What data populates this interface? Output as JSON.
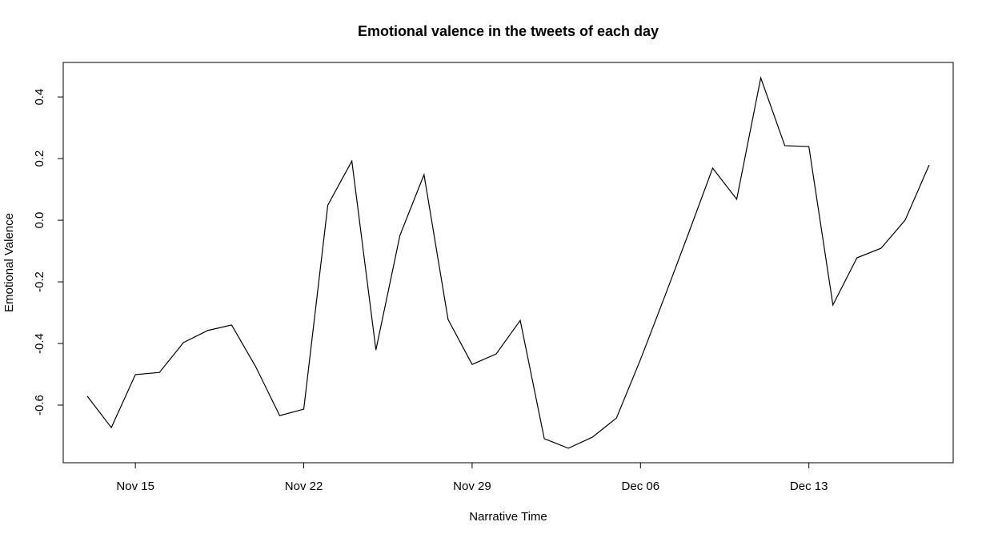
{
  "chart_data": {
    "type": "line",
    "title": "Emotional valence in the tweets of each day",
    "xlabel": "Narrative Time",
    "ylabel": "Emotional Valence",
    "x": [
      "11-13",
      "11-14",
      "11-15",
      "11-16",
      "11-17",
      "11-18",
      "11-19",
      "11-20",
      "11-21",
      "11-22",
      "11-23",
      "11-24",
      "11-25",
      "11-26",
      "11-27",
      "11-28",
      "11-29",
      "11-30",
      "12-01",
      "12-02",
      "12-03",
      "12-04",
      "12-05",
      "12-06",
      "12-07",
      "12-08",
      "12-09",
      "12-10",
      "12-11",
      "12-12",
      "12-13",
      "12-14",
      "12-15",
      "12-16",
      "12-17",
      "12-18"
    ],
    "series": [
      {
        "name": "Emotional Valence",
        "color": "#000000",
        "values": [
          -0.571,
          -0.673,
          -0.501,
          -0.494,
          -0.397,
          -0.358,
          -0.34,
          -0.475,
          -0.634,
          -0.613,
          0.049,
          0.192,
          -0.421,
          -0.049,
          0.148,
          -0.322,
          -0.468,
          -0.434,
          -0.325,
          -0.709,
          -0.74,
          -0.704,
          -0.642,
          -0.452,
          -0.249,
          -0.042,
          0.169,
          0.068,
          0.462,
          0.242,
          0.239,
          -0.275,
          -0.122,
          -0.091,
          0.0,
          0.179
        ]
      }
    ],
    "xlim": [
      "11-12",
      "12-19"
    ],
    "xticks": [
      {
        "value": "11-15",
        "label": "Nov 15"
      },
      {
        "value": "11-22",
        "label": "Nov 22"
      },
      {
        "value": "11-29",
        "label": "Nov 29"
      },
      {
        "value": "12-06",
        "label": "Dec 06"
      },
      {
        "value": "12-13",
        "label": "Dec 13"
      }
    ],
    "ylim": [
      -0.787,
      0.512
    ],
    "yticks": [
      -0.6,
      -0.4,
      -0.2,
      {
        "value": 0,
        "label": "0.0"
      },
      0.2,
      0.4
    ]
  }
}
